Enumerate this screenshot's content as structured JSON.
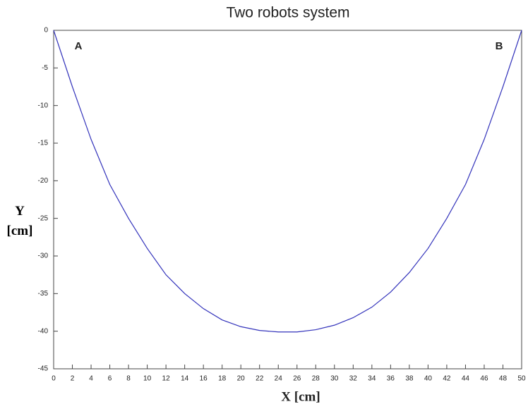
{
  "chart_data": {
    "type": "line",
    "title": "Two robots system",
    "xlabel": "X [cm]",
    "ylabel": "Y [cm]",
    "annotations": [
      "A",
      "B"
    ],
    "x": [
      0,
      2,
      4,
      6,
      8,
      10,
      12,
      14,
      16,
      18,
      20,
      22,
      24,
      25,
      26,
      28,
      30,
      32,
      34,
      36,
      38,
      40,
      42,
      44,
      46,
      48,
      50
    ],
    "values": [
      0,
      -7.5,
      -14.5,
      -20.5,
      -25,
      -29,
      -32.5,
      -35,
      -37,
      -38.5,
      -39.4,
      -39.9,
      -40.1,
      -40.1,
      -40.1,
      -39.8,
      -39.2,
      -38.2,
      -36.8,
      -34.8,
      -32.2,
      -29,
      -25,
      -20.5,
      -14.5,
      -7.5,
      0
    ],
    "color": "#3333bb",
    "xlim": [
      0,
      50
    ],
    "xticks": [
      0,
      2,
      4,
      6,
      8,
      10,
      12,
      14,
      16,
      18,
      20,
      22,
      24,
      26,
      28,
      30,
      32,
      34,
      36,
      38,
      40,
      42,
      44,
      46,
      48,
      50
    ],
    "ylim": [
      -45,
      0
    ],
    "yticks": [
      -45,
      -40,
      -35,
      -30,
      -25,
      -20,
      -15,
      -10,
      -5,
      0
    ],
    "grid": false
  }
}
